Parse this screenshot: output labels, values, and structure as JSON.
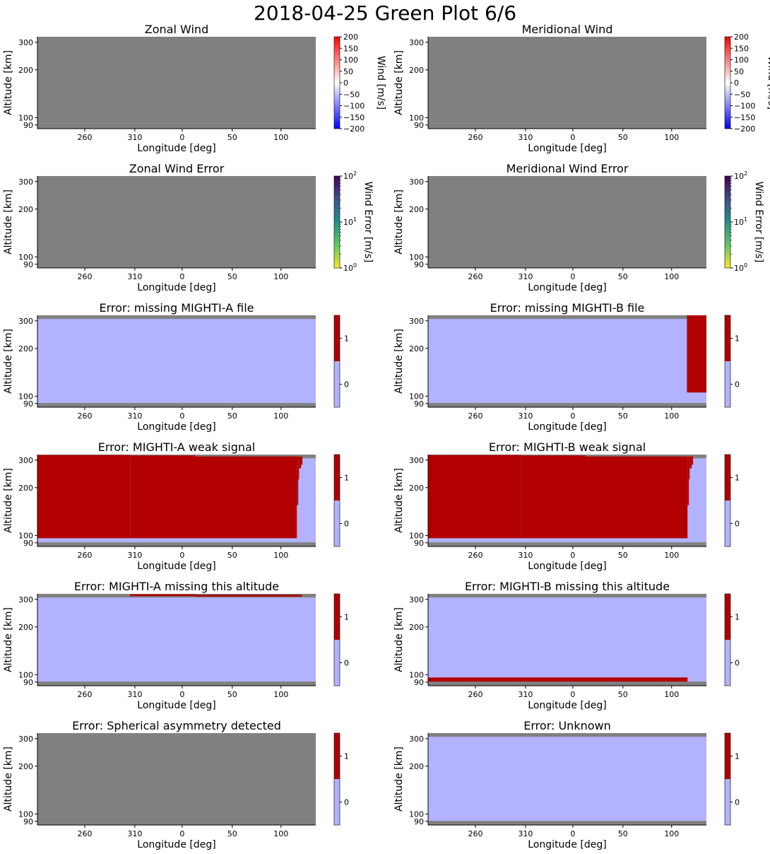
{
  "figure": {
    "title": "2018-04-25 Green Plot 6/6",
    "xlabel": "Longitude [deg]",
    "ylabel": "Altitude [km]",
    "x_ticks": [
      "260",
      "310",
      "0",
      "50",
      "100"
    ],
    "y_ticks": [
      "300",
      "200",
      "100",
      "90"
    ]
  },
  "colors": {
    "missing": "#808080",
    "flag_off": "#b2b2ff",
    "flag_on": "#b20000"
  },
  "colorbars": {
    "wind": {
      "label": "Wind [m/s]",
      "ticks": [
        "200",
        "150",
        "100",
        "50",
        "0",
        "−50",
        "−100",
        "−150",
        "−200"
      ]
    },
    "error": {
      "label": "Wind Error [m/s]",
      "ticks": [
        "10",
        "10",
        "10"
      ],
      "exponents": [
        "2",
        "1",
        "0"
      ]
    },
    "flag": {
      "ticks": [
        "1",
        "0"
      ]
    }
  },
  "chart_data": [
    {
      "type": "heatmap",
      "title": "Zonal Wind",
      "colorbar": "wind",
      "x": [
        "260",
        "310",
        "0",
        "50",
        "100"
      ],
      "y_altitude_km": [
        300,
        200,
        100,
        90
      ],
      "values": "no data (all masked)",
      "flag_regions": []
    },
    {
      "type": "heatmap",
      "title": "Meridional Wind",
      "colorbar": "wind",
      "x": [
        "260",
        "310",
        "0",
        "50",
        "100"
      ],
      "y_altitude_km": [
        300,
        200,
        100,
        90
      ],
      "values": "no data (all masked)",
      "flag_regions": []
    },
    {
      "type": "heatmap",
      "title": "Zonal Wind Error",
      "colorbar": "error",
      "x": [
        "260",
        "310",
        "0",
        "50",
        "100"
      ],
      "y_altitude_km": [
        300,
        200,
        100,
        90
      ],
      "values": "no data (all masked)",
      "flag_regions": []
    },
    {
      "type": "heatmap",
      "title": "Meridional Wind Error",
      "colorbar": "error",
      "x": [
        "260",
        "310",
        "0",
        "50",
        "100"
      ],
      "y_altitude_km": [
        300,
        200,
        100,
        90
      ],
      "values": "no data (all masked)",
      "flag_regions": []
    },
    {
      "type": "heatmap",
      "title": "Error: missing MIGHTI-A file",
      "colorbar": "flag",
      "background": 0,
      "flag_regions": []
    },
    {
      "type": "heatmap",
      "title": "Error: missing MIGHTI-B file",
      "colorbar": "flag",
      "background": 0,
      "flag_regions": [
        {
          "x0": 0.93,
          "x1": 1.0,
          "y0": 0.16,
          "y1": 1.0
        },
        {
          "x0": 0.935,
          "x1": 1.0,
          "y0": 0.38,
          "y1": 1.0
        },
        {
          "x0": 0.94,
          "x1": 1.0,
          "y0": 0.75,
          "y1": 1.0
        },
        {
          "x0": 0.945,
          "x1": 1.0,
          "y0": 0.85,
          "y1": 1.0
        }
      ]
    },
    {
      "type": "heatmap",
      "title": "Error: MIGHTI-A weak signal",
      "colorbar": "flag",
      "background": 0,
      "flag_regions": [
        {
          "x0": 0.0,
          "x1": 0.333,
          "y0": 0.09,
          "y1": 0.995
        },
        {
          "x0": 0.333,
          "x1": 0.566,
          "y0": 0.09,
          "y1": 0.99
        },
        {
          "x0": 0.566,
          "x1": 0.932,
          "y0": 0.09,
          "y1": 0.98
        },
        {
          "x0": 0.932,
          "x1": 0.937,
          "y0": 0.45,
          "y1": 0.98
        },
        {
          "x0": 0.937,
          "x1": 0.94,
          "y0": 0.73,
          "y1": 0.98
        },
        {
          "x0": 0.94,
          "x1": 0.947,
          "y0": 0.85,
          "y1": 0.98
        },
        {
          "x0": 0.947,
          "x1": 0.952,
          "y0": 0.89,
          "y1": 0.98
        }
      ]
    },
    {
      "type": "heatmap",
      "title": "Error: MIGHTI-B weak signal",
      "colorbar": "flag",
      "background": 0,
      "flag_regions": [
        {
          "x0": 0.0,
          "x1": 0.333,
          "y0": 0.09,
          "y1": 0.995
        },
        {
          "x0": 0.333,
          "x1": 0.566,
          "y0": 0.09,
          "y1": 0.99
        },
        {
          "x0": 0.566,
          "x1": 0.932,
          "y0": 0.09,
          "y1": 0.98
        },
        {
          "x0": 0.932,
          "x1": 0.937,
          "y0": 0.45,
          "y1": 0.98
        },
        {
          "x0": 0.937,
          "x1": 0.94,
          "y0": 0.73,
          "y1": 0.98
        },
        {
          "x0": 0.94,
          "x1": 0.947,
          "y0": 0.85,
          "y1": 0.98
        },
        {
          "x0": 0.947,
          "x1": 0.952,
          "y0": 0.89,
          "y1": 0.98
        }
      ]
    },
    {
      "type": "heatmap",
      "title": "Error: MIGHTI-A missing this altitude",
      "colorbar": "flag",
      "background": 0,
      "flag_regions": [
        {
          "x0": 0.333,
          "x1": 0.566,
          "y0": 0.975,
          "y1": 0.995
        },
        {
          "x0": 0.566,
          "x1": 0.95,
          "y0": 0.97,
          "y1": 0.99
        }
      ]
    },
    {
      "type": "heatmap",
      "title": "Error: MIGHTI-B missing this altitude",
      "colorbar": "flag",
      "background": 0,
      "flag_regions": [
        {
          "x0": 0.0,
          "x1": 0.932,
          "y0": 0.045,
          "y1": 0.09
        }
      ]
    },
    {
      "type": "heatmap",
      "title": "Error: Spherical asymmetry detected",
      "colorbar": "flag",
      "values": "no data (all masked)",
      "flag_regions": []
    },
    {
      "type": "heatmap",
      "title": "Error: Unknown",
      "colorbar": "flag",
      "background": 0,
      "flag_regions": []
    }
  ]
}
